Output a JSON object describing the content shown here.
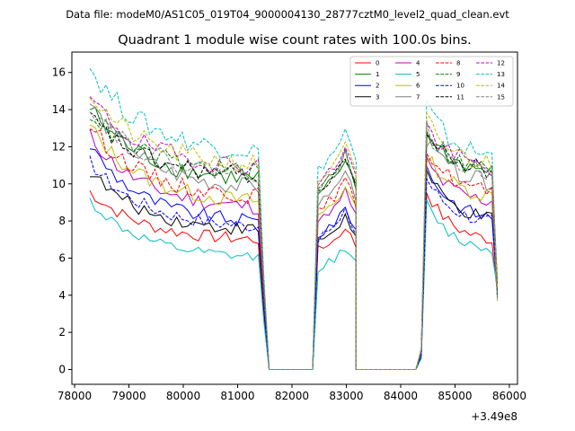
{
  "header": {
    "data_file": "Data file: modeM0/AS1C05_019T04_9000004130_28777cztM0_level2_quad_clean.evt"
  },
  "chart_data": {
    "type": "line",
    "title": "Quadrant 1 module wise count rates with 100.0s bins.",
    "xlabel": "",
    "ylabel": "",
    "x_offset_label": "+3.49e8",
    "xlim": [
      77950,
      86150
    ],
    "ylim": [
      -0.8,
      17.1
    ],
    "xticks": [
      78000,
      79000,
      80000,
      81000,
      82000,
      83000,
      84000,
      85000,
      86000
    ],
    "xtick_labels": [
      "78000",
      "79000",
      "80000",
      "81000",
      "82000",
      "83000",
      "84000",
      "85000",
      "86000"
    ],
    "yticks": [
      0,
      2,
      4,
      6,
      8,
      10,
      12,
      14,
      16
    ],
    "ytick_labels": [
      "0",
      "2",
      "4",
      "6",
      "8",
      "10",
      "12",
      "14",
      "16"
    ],
    "grid": false,
    "legend_position": "top-right",
    "segments": [
      {
        "start": 78280,
        "end": 81380,
        "profile": "decay"
      },
      {
        "start": 81480,
        "end": 81580,
        "profile": "drop"
      },
      {
        "start": 81580,
        "end": 82380,
        "profile": "zero"
      },
      {
        "start": 82380,
        "end": 83180,
        "profile": "hump"
      },
      {
        "start": 83180,
        "end": 84280,
        "profile": "zero"
      },
      {
        "start": 84280,
        "end": 85780,
        "profile": "decay2"
      }
    ],
    "series": [
      {
        "name": "0",
        "color": "#ff0000",
        "dash": "solid",
        "start": 9.6,
        "plateau": 6.9,
        "second_start": 9.6,
        "second_end": 6.8
      },
      {
        "name": "1",
        "color": "#008000",
        "dash": "solid",
        "start": 14.1,
        "plateau": 10.1,
        "second_start": 12.8,
        "second_end": 10.5
      },
      {
        "name": "2",
        "color": "#0000ff",
        "dash": "solid",
        "start": 12.1,
        "plateau": 7.8,
        "second_start": 10.9,
        "second_end": 8.0
      },
      {
        "name": "3",
        "color": "#000000",
        "dash": "solid",
        "start": 10.7,
        "plateau": 7.4,
        "second_start": 10.6,
        "second_end": 7.9
      },
      {
        "name": "4",
        "color": "#bf00bf",
        "dash": "solid",
        "start": 12.6,
        "plateau": 8.6,
        "second_start": 11.2,
        "second_end": 8.9
      },
      {
        "name": "5",
        "color": "#00bfbf",
        "dash": "solid",
        "start": 9.1,
        "plateau": 5.9,
        "second_start": 8.9,
        "second_end": 6.3
      },
      {
        "name": "6",
        "color": "#bfbf00",
        "dash": "solid",
        "start": 13.1,
        "plateau": 8.9,
        "second_start": 11.6,
        "second_end": 9.2
      },
      {
        "name": "7",
        "color": "#808080",
        "dash": "solid",
        "start": 14.4,
        "plateau": 9.6,
        "second_start": 12.4,
        "second_end": 9.9
      },
      {
        "name": "8",
        "color": "#ff0000",
        "dash": "dashed",
        "start": 13.2,
        "plateau": 9.2,
        "second_start": 11.9,
        "second_end": 9.4
      },
      {
        "name": "9",
        "color": "#008000",
        "dash": "dashed",
        "start": 13.9,
        "plateau": 10.5,
        "second_start": 13.0,
        "second_end": 10.6
      },
      {
        "name": "10",
        "color": "#0000ff",
        "dash": "dashed",
        "start": 11.2,
        "plateau": 7.6,
        "second_start": 10.3,
        "second_end": 7.8
      },
      {
        "name": "11",
        "color": "#000000",
        "dash": "dashed",
        "start": 13.6,
        "plateau": 10.3,
        "second_start": 12.6,
        "second_end": 10.6
      },
      {
        "name": "12",
        "color": "#bf00bf",
        "dash": "dashed",
        "start": 14.6,
        "plateau": 10.8,
        "second_start": 13.1,
        "second_end": 10.7
      },
      {
        "name": "13",
        "color": "#00bfbf",
        "dash": "dashed",
        "start": 16.3,
        "plateau": 11.6,
        "second_start": 14.2,
        "second_end": 11.3
      },
      {
        "name": "14",
        "color": "#bfbf00",
        "dash": "dashed",
        "start": 14.9,
        "plateau": 10.9,
        "second_start": 13.4,
        "second_end": 10.9
      },
      {
        "name": "15",
        "color": "#808080",
        "dash": "dashed",
        "start": 14.3,
        "plateau": 10.4,
        "second_start": 12.9,
        "second_end": 10.4
      }
    ]
  }
}
